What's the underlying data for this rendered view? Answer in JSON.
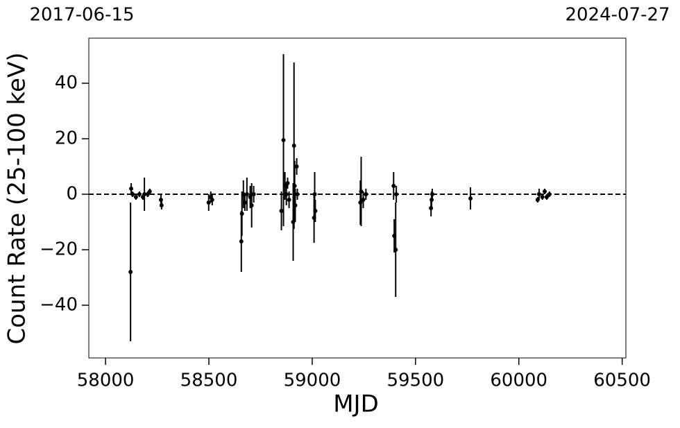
{
  "chart_data": {
    "type": "errorbar",
    "top_axis_labels": [
      "2017-06-15",
      "2024-07-27"
    ],
    "xlabel": "MJD",
    "ylabel": "Count Rate (25-100 keV)",
    "xlim": [
      57919,
      60518
    ],
    "ylim": [
      -59,
      56.25
    ],
    "xticks": [
      58000,
      58500,
      59000,
      59500,
      60000,
      60500
    ],
    "yticks": [
      {
        "value": -40,
        "label": "−40"
      },
      {
        "value": -20,
        "label": "−20"
      },
      0,
      20,
      40
    ],
    "hline": 0,
    "color": "#000000",
    "x": [
      58124,
      58121,
      58131,
      58147,
      58164,
      58181,
      58188,
      58204,
      58214,
      58268,
      58271,
      58499,
      58509,
      58516,
      58657,
      58660,
      58667,
      58674,
      58684,
      58700,
      58707,
      58717,
      58851,
      58861,
      58868,
      58875,
      58881,
      58888,
      58908,
      58912,
      58915,
      58918,
      58925,
      58928,
      59009,
      59012,
      59015,
      59233,
      59237,
      59247,
      59260,
      59394,
      59397,
      59404,
      59407,
      59575,
      59578,
      59581,
      59766,
      60091,
      60098,
      60114,
      60125,
      60135,
      60148
    ],
    "values": [
      2,
      -28,
      0,
      -1,
      0,
      -1,
      0,
      0,
      1,
      -2,
      -4,
      -3,
      -1,
      -2,
      -17,
      -7,
      0,
      -3,
      0,
      -1,
      -4,
      0,
      -6,
      19.5,
      3,
      0,
      4,
      -2,
      -10,
      17.5,
      3,
      -4,
      10,
      0,
      -8.5,
      0,
      -6,
      -3,
      1,
      -2,
      0,
      3,
      -15,
      -20,
      0,
      -5,
      -2,
      0,
      -1.5,
      -2,
      0,
      -1,
      1,
      -1,
      0
    ],
    "errors": [
      2,
      25,
      1,
      1,
      1,
      1,
      6,
      1,
      1,
      2,
      1.5,
      3,
      2,
      2,
      11,
      8,
      5,
      3,
      6,
      4,
      8,
      3,
      7,
      31,
      5,
      4,
      2,
      3,
      14,
      30,
      9,
      6,
      3,
      2,
      9,
      8,
      4,
      8,
      12.5,
      3,
      2,
      5,
      6,
      17,
      3,
      3,
      3,
      2,
      4,
      1,
      2,
      1,
      1,
      1,
      1
    ]
  }
}
